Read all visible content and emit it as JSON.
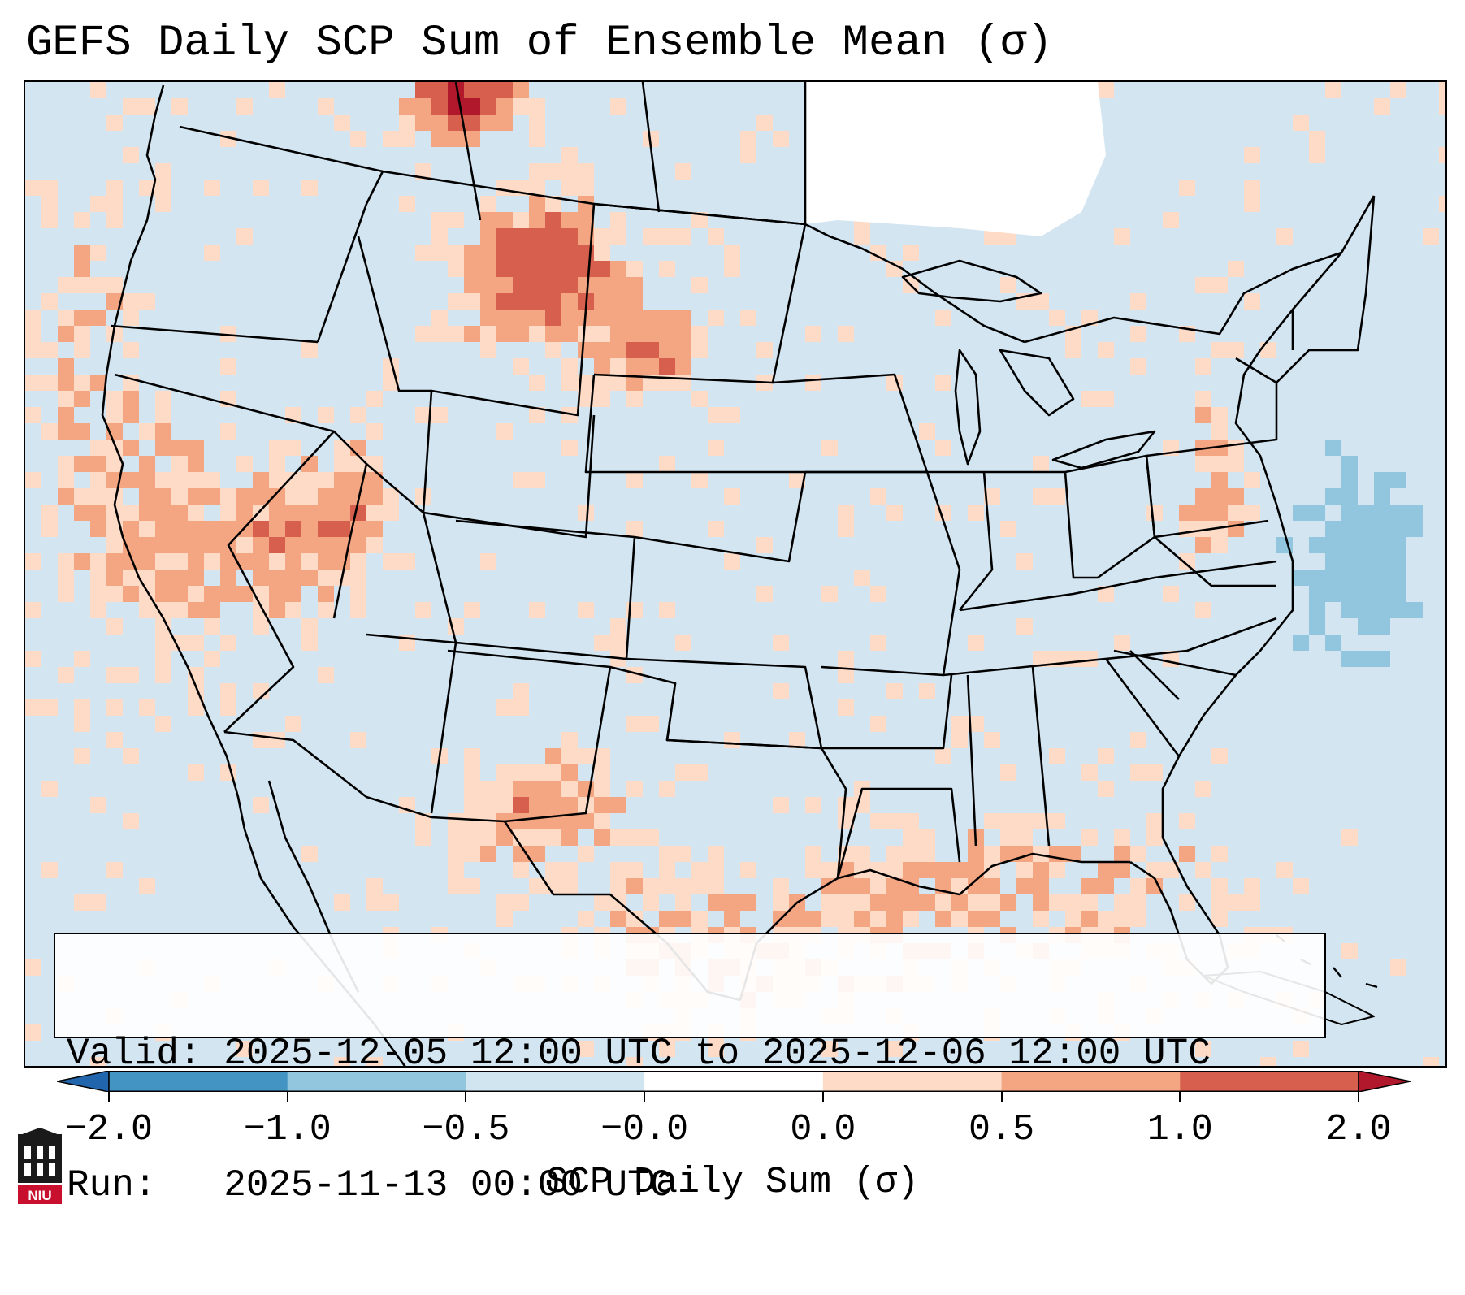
{
  "title": "GEFS Daily SCP Sum of Ensemble Mean (σ)",
  "info": {
    "valid_line": "Valid: 2025-12-05 12:00 UTC to 2025-12-06 12:00 UTC",
    "run_line": "Run:   2025-11-13 00:00 UTC"
  },
  "logo": {
    "text": "NIU",
    "icon": "niu-building-icon"
  },
  "colors": {
    "map_background": "#d2e5f1",
    "state_lines": "#000000",
    "frame": "#000000",
    "legend": {
      "below_-2": "#2166ac",
      "-2_to_-1": "#4393c3",
      "-1_to_-0.5": "#92c5de",
      "-0.5_to_0": "#d1e5f0",
      "0_to_0.5": "#fddbc7",
      "0.5_to_1": "#f4a582",
      "1_to_2": "#d6604d",
      "above_2": "#b2182b"
    }
  },
  "chart_data": {
    "type": "heatmap",
    "title": "GEFS Daily SCP Sum of Ensemble Mean (σ)",
    "region": "Contiguous United States and surrounding areas",
    "variable": "SCP Daily Sum standardized anomaly",
    "units": "σ",
    "colorbar": {
      "label": "SCP Daily Sum (σ)",
      "boundaries": [
        -2.0,
        -1.0,
        -0.5,
        -0.0,
        0.0,
        0.5,
        1.0,
        2.0
      ],
      "tick_labels": [
        "−2.0",
        "−1.0",
        "−0.5",
        "−0.0",
        "0.0",
        "0.5",
        "1.0",
        "2.0"
      ],
      "colors": [
        "#4393c3",
        "#92c5de",
        "#d1e5f0",
        "#ffffff",
        "#fddbc7",
        "#f4a582",
        "#d6604d"
      ],
      "extend": "both",
      "under_color": "#2166ac",
      "over_color": "#b2182b"
    },
    "valid_start": "2025-12-05 12:00 UTC",
    "valid_end": "2025-12-06 12:00 UTC",
    "run": "2025-11-13 00:00 UTC",
    "regions_of_note": [
      {
        "area": "Montana",
        "range": "1.0 to >2.0"
      },
      {
        "area": "North Dakota",
        "range": "1.0 to >2.0"
      },
      {
        "area": "Southern Alberta",
        "range": ">2.0"
      },
      {
        "area": "Nevada / western Utah",
        "range": "0.5 to 1.0"
      },
      {
        "area": "West Texas / southeast New Mexico",
        "range": "0.5 to 1.0"
      },
      {
        "area": "Gulf Coast",
        "range": "0.0 to 0.5"
      },
      {
        "area": "California coast",
        "range": "0.0 to 0.5"
      },
      {
        "area": "Western Atlantic offshore",
        "range": "-1.0 to -0.5"
      }
    ]
  }
}
